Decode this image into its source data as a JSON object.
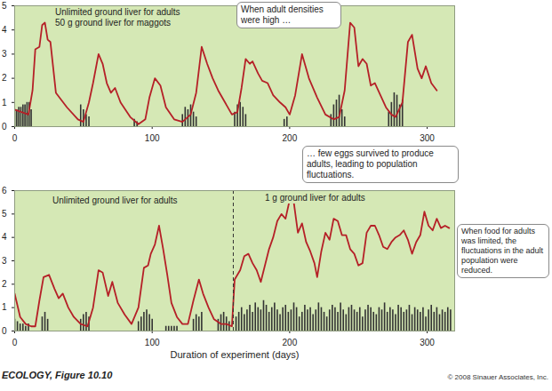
{
  "chart_data": [
    {
      "type": "line",
      "labels": [
        "Unlimited ground liver for adults",
        "50 g ground liver for maggots"
      ],
      "annotations": [
        "When adult densities were high …",
        "… few eggs survived to produce adults, leading to population fluctuations."
      ],
      "xlim": [
        0,
        320
      ],
      "xticks": [
        0,
        100,
        200,
        300
      ],
      "ylim": [
        0,
        5
      ],
      "yticks": [
        0,
        1,
        2,
        3,
        4,
        5
      ],
      "series": [
        {
          "type": "bar",
          "color": "#333333",
          "x": [
            0,
            1.5,
            3,
            4.5,
            6,
            7.5,
            9,
            10.5,
            12,
            48,
            50,
            52,
            54,
            87,
            89,
            122,
            124,
            126,
            128,
            130,
            132,
            160,
            162,
            164,
            166,
            168,
            196,
            198,
            230,
            232,
            234,
            236,
            238,
            240,
            272,
            274,
            276,
            278,
            280,
            282
          ],
          "values": [
            0.7,
            0.7,
            0.8,
            0.8,
            0.9,
            0.9,
            1.0,
            1.0,
            0.7,
            0.9,
            0.7,
            0.5,
            0.4,
            0.3,
            0.2,
            0.5,
            0.8,
            0.7,
            0.9,
            0.6,
            0.4,
            0.6,
            0.9,
            1.0,
            0.8,
            0.5,
            0.3,
            0.4,
            0.5,
            0.9,
            1.1,
            1.3,
            0.7,
            0.4,
            0.6,
            1.0,
            1.4,
            1.3,
            0.9,
            1.1
          ]
        },
        {
          "type": "line",
          "color": "#b52027",
          "x": [
            0,
            5,
            10,
            13,
            15,
            18,
            20,
            22,
            24,
            26,
            30,
            38,
            46,
            50,
            54,
            57,
            61,
            64,
            67,
            70,
            73,
            77,
            84,
            90,
            95,
            98,
            102,
            106,
            110,
            116,
            122,
            128,
            132,
            136,
            140,
            144,
            148,
            153,
            158,
            162,
            165,
            168,
            171,
            173,
            177,
            180,
            184,
            188,
            193,
            197,
            200,
            204,
            209,
            214,
            220,
            226,
            232,
            236,
            240,
            244,
            247,
            250,
            253,
            256,
            259,
            262,
            266,
            270,
            274,
            277,
            282,
            286,
            289,
            293,
            296,
            299,
            303,
            307
          ],
          "values": [
            0.7,
            0.6,
            0.5,
            1.5,
            3.2,
            3.3,
            4.2,
            4.3,
            3.6,
            3.5,
            1.4,
            0.8,
            0.3,
            0.2,
            1.0,
            1.8,
            3.0,
            2.6,
            1.8,
            1.4,
            1.6,
            1.0,
            0.4,
            0.1,
            0.3,
            1.2,
            2.0,
            1.7,
            0.8,
            0.3,
            0.2,
            0.5,
            1.4,
            3.3,
            2.6,
            2.0,
            1.5,
            1.0,
            0.5,
            0.6,
            1.6,
            2.8,
            2.6,
            2.7,
            2.2,
            1.9,
            1.8,
            1.3,
            1.0,
            0.8,
            0.5,
            1.3,
            3.0,
            2.0,
            1.2,
            0.5,
            0.3,
            0.4,
            1.5,
            4.3,
            4.1,
            2.5,
            2.8,
            2.6,
            1.7,
            1.8,
            1.3,
            0.8,
            0.5,
            0.4,
            1.0,
            3.5,
            3.8,
            2.4,
            2.0,
            2.5,
            1.8,
            1.5
          ]
        }
      ]
    },
    {
      "type": "line",
      "labels": [
        "Unlimited ground liver for adults",
        "1 g ground liver for adults"
      ],
      "annotations": [
        "When food for adults was limited, the fluctuations in the adult population were reduced."
      ],
      "xlabel": "Duration of experiment (days)",
      "divider_x": 159,
      "xlim": [
        0,
        320
      ],
      "xticks": [
        0,
        100,
        200,
        300
      ],
      "ylim": [
        0,
        6
      ],
      "yticks": [
        0,
        1,
        2,
        3,
        4,
        5,
        6
      ],
      "series": [
        {
          "type": "bar",
          "color": "#333333",
          "x": [
            0,
            2,
            4,
            6,
            8,
            10,
            20,
            22,
            24,
            48,
            50,
            52,
            54,
            90,
            92,
            94,
            96,
            98,
            100,
            110,
            112,
            114,
            116,
            118,
            130,
            132,
            134,
            136,
            148,
            150,
            152,
            154,
            156,
            161,
            163,
            165,
            167,
            169,
            171,
            173,
            175,
            177,
            179,
            181,
            183,
            185,
            187,
            189,
            191,
            193,
            195,
            197,
            199,
            201,
            203,
            205,
            207,
            209,
            211,
            213,
            215,
            217,
            219,
            221,
            223,
            225,
            227,
            229,
            231,
            233,
            235,
            237,
            239,
            241,
            243,
            245,
            247,
            249,
            251,
            253,
            255,
            257,
            259,
            261,
            263,
            265,
            267,
            269,
            271,
            273,
            275,
            277,
            279,
            281,
            283,
            285,
            287,
            289,
            291,
            293,
            295,
            297,
            299,
            301,
            303,
            305,
            307,
            309,
            311,
            313,
            315,
            317
          ],
          "values": [
            0.5,
            0.4,
            0.3,
            0.3,
            0.2,
            0.3,
            0.6,
            0.8,
            0.5,
            0.5,
            0.7,
            0.8,
            0.6,
            0.4,
            0.6,
            0.8,
            0.9,
            0.7,
            0.5,
            0.2,
            0.2,
            0.2,
            0.2,
            0.2,
            0.5,
            0.7,
            0.6,
            0.8,
            0.5,
            0.7,
            0.8,
            0.6,
            0.4,
            0.6,
            0.8,
            1.0,
            0.7,
            0.9,
            1.1,
            0.8,
            1.2,
            1.0,
            0.9,
            1.3,
            1.1,
            0.8,
            1.0,
            1.2,
            0.9,
            0.7,
            1.0,
            1.1,
            0.8,
            0.9,
            1.2,
            1.0,
            0.6,
            0.8,
            1.1,
            0.9,
            1.0,
            0.7,
            0.9,
            1.2,
            1.0,
            0.8,
            0.6,
            0.9,
            1.1,
            1.0,
            0.8,
            1.2,
            0.9,
            0.7,
            1.0,
            1.1,
            0.9,
            0.8,
            1.0,
            0.6,
            0.9,
            1.1,
            1.0,
            0.8,
            0.7,
            1.0,
            0.9,
            1.2,
            0.8,
            1.0,
            0.9,
            0.7,
            1.1,
            1.0,
            0.8,
            0.9,
            1.1,
            0.7,
            1.0,
            0.9,
            0.8,
            1.0,
            0.6,
            0.9,
            1.1,
            0.8,
            1.0,
            0.7,
            0.9,
            0.8,
            1.0,
            0.9
          ]
        },
        {
          "type": "line",
          "color": "#b52027",
          "x": [
            0,
            4,
            8,
            12,
            15,
            18,
            21,
            25,
            29,
            32,
            35,
            39,
            43,
            48,
            53,
            57,
            61,
            64,
            68,
            71,
            75,
            80,
            85,
            90,
            94,
            97,
            99,
            102,
            105,
            108,
            111,
            114,
            118,
            122,
            126,
            130,
            134,
            137,
            141,
            145,
            150,
            154,
            158,
            160,
            164,
            167,
            170,
            173,
            176,
            179,
            182,
            185,
            188,
            191,
            194,
            197,
            200,
            203,
            206,
            209,
            212,
            215,
            218,
            220,
            223,
            226,
            229,
            232,
            235,
            238,
            241,
            244,
            247,
            250,
            253,
            256,
            259,
            262,
            265,
            268,
            271,
            274,
            277,
            280,
            283,
            286,
            289,
            292,
            295,
            298,
            301,
            304,
            307,
            310,
            313,
            316
          ],
          "values": [
            1.6,
            0.6,
            0.3,
            0.2,
            0.2,
            1.3,
            2.3,
            2.4,
            1.8,
            1.4,
            1.6,
            1.0,
            0.6,
            0.3,
            0.2,
            1.0,
            2.6,
            2.5,
            1.5,
            2.1,
            1.2,
            0.7,
            0.3,
            1.0,
            2.7,
            2.8,
            3.3,
            3.7,
            4.5,
            3.5,
            2.4,
            1.2,
            0.6,
            0.3,
            0.3,
            1.3,
            2.2,
            1.6,
            1.0,
            0.5,
            0.3,
            0.3,
            0.2,
            2.2,
            2.6,
            3.2,
            3.3,
            2.9,
            2.6,
            2.1,
            2.8,
            3.5,
            4.0,
            4.7,
            5.0,
            4.8,
            5.6,
            5.5,
            4.2,
            4.6,
            3.8,
            3.4,
            2.9,
            2.3,
            3.4,
            4.2,
            3.9,
            4.8,
            4.7,
            4.1,
            4.1,
            3.5,
            3.3,
            2.8,
            2.9,
            4.2,
            4.5,
            4.5,
            4.1,
            3.6,
            3.5,
            3.8,
            4.0,
            4.1,
            4.3,
            3.9,
            3.3,
            3.8,
            4.1,
            5.1,
            4.5,
            4.3,
            4.8,
            4.4,
            4.5,
            4.4
          ]
        }
      ]
    }
  ],
  "caption": "ECOLOGY, Figure 10.10",
  "credit": "© 2008 Sinauer Associates, Inc."
}
